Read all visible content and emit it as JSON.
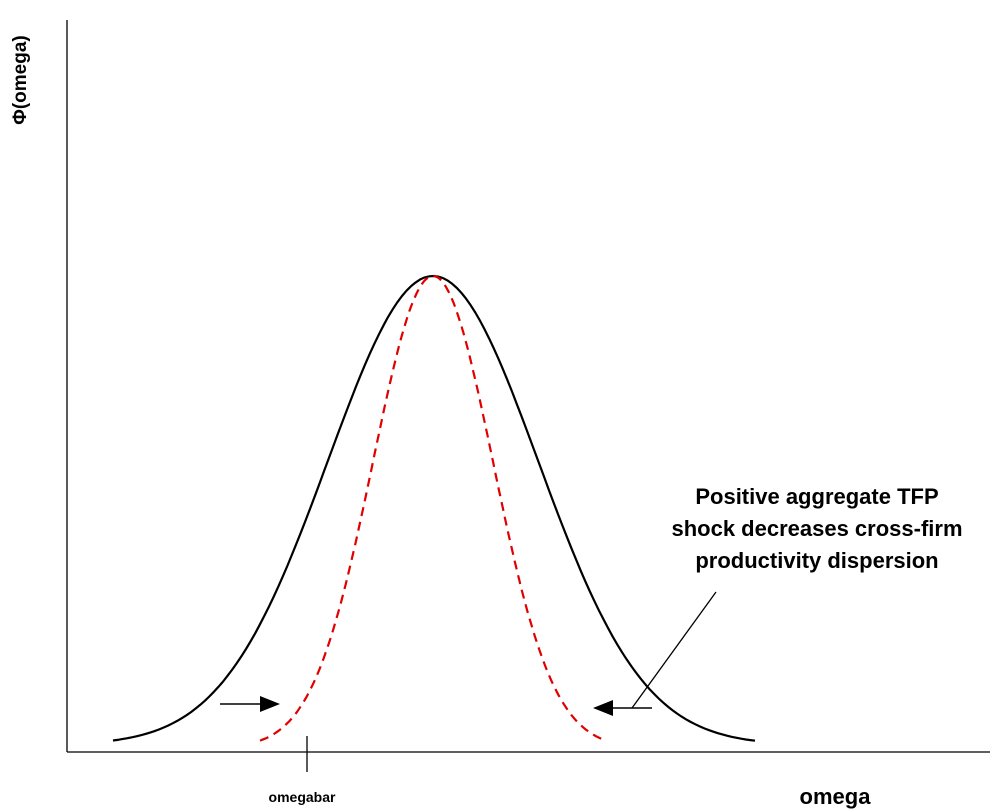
{
  "diagram": {
    "y_axis_label": "Φ(omega)",
    "x_axis_label": "omega",
    "marker_label": "omegabar",
    "annotation_lines": [
      "Positive aggregate TFP",
      "shock decreases cross-firm",
      "productivity dispersion"
    ],
    "curves": [
      {
        "role": "before-shock density",
        "style": "solid",
        "color": "#000000"
      },
      {
        "role": "after-shock density",
        "style": "dashed",
        "color": "#e00000"
      }
    ],
    "arrows": [
      {
        "direction": "right"
      },
      {
        "direction": "left"
      }
    ]
  }
}
